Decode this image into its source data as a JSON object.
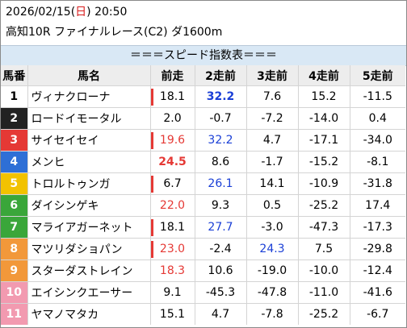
{
  "header": {
    "date": "2026/02/15",
    "dow": "日",
    "time": "20:50",
    "race": "高知10R ファイナルレース(C2) ダ1600m"
  },
  "panel_title": "＝＝＝スピード指数表＝＝＝",
  "columns": [
    "馬番",
    "馬名",
    "前走",
    "2走前",
    "3走前",
    "4走前",
    "5走前"
  ],
  "colors": {
    "red": "#e53935",
    "blue": "#1a3fd6",
    "header_bg": "#ededed",
    "title_bg": "#d9e8f5"
  },
  "rows": [
    {
      "num": "1",
      "num_bg": "#ffffff",
      "num_fg": "#000000",
      "name": "ヴィナクローナ",
      "mark": true,
      "vals": [
        {
          "t": "18.1",
          "c": ""
        },
        {
          "t": "32.2",
          "c": "blue bold"
        },
        {
          "t": "7.6",
          "c": ""
        },
        {
          "t": "15.2",
          "c": ""
        },
        {
          "t": "-11.5",
          "c": ""
        }
      ]
    },
    {
      "num": "2",
      "num_bg": "#222222",
      "num_fg": "#ffffff",
      "name": "ロードイモータル",
      "mark": false,
      "vals": [
        {
          "t": "2.0",
          "c": ""
        },
        {
          "t": "-0.7",
          "c": ""
        },
        {
          "t": "-7.2",
          "c": ""
        },
        {
          "t": "-14.0",
          "c": ""
        },
        {
          "t": "0.4",
          "c": ""
        }
      ]
    },
    {
      "num": "3",
      "num_bg": "#e53935",
      "num_fg": "#ffffff",
      "name": "サイセイセイ",
      "mark": true,
      "vals": [
        {
          "t": "19.6",
          "c": "red"
        },
        {
          "t": "32.2",
          "c": "blue"
        },
        {
          "t": "4.7",
          "c": ""
        },
        {
          "t": "-17.1",
          "c": ""
        },
        {
          "t": "-34.0",
          "c": ""
        }
      ]
    },
    {
      "num": "4",
      "num_bg": "#2e6fd6",
      "num_fg": "#ffffff",
      "name": "メンヒ",
      "mark": false,
      "vals": [
        {
          "t": "24.5",
          "c": "red bold"
        },
        {
          "t": "8.6",
          "c": ""
        },
        {
          "t": "-1.7",
          "c": ""
        },
        {
          "t": "-15.2",
          "c": ""
        },
        {
          "t": "-8.1",
          "c": ""
        }
      ]
    },
    {
      "num": "5",
      "num_bg": "#f2c200",
      "num_fg": "#ffffff",
      "name": "トロルトゥンガ",
      "mark": true,
      "vals": [
        {
          "t": "6.7",
          "c": ""
        },
        {
          "t": "26.1",
          "c": "blue"
        },
        {
          "t": "14.1",
          "c": ""
        },
        {
          "t": "-10.9",
          "c": ""
        },
        {
          "t": "-31.8",
          "c": ""
        }
      ]
    },
    {
      "num": "6",
      "num_bg": "#3aa63a",
      "num_fg": "#ffffff",
      "name": "ダイシンゲキ",
      "mark": false,
      "vals": [
        {
          "t": "22.0",
          "c": "red"
        },
        {
          "t": "9.3",
          "c": ""
        },
        {
          "t": "0.5",
          "c": ""
        },
        {
          "t": "-25.2",
          "c": ""
        },
        {
          "t": "17.4",
          "c": ""
        }
      ]
    },
    {
      "num": "7",
      "num_bg": "#3aa63a",
      "num_fg": "#ffffff",
      "name": "マライアガーネット",
      "mark": true,
      "vals": [
        {
          "t": "18.1",
          "c": ""
        },
        {
          "t": "27.7",
          "c": "blue"
        },
        {
          "t": "-3.0",
          "c": ""
        },
        {
          "t": "-47.3",
          "c": ""
        },
        {
          "t": "-17.3",
          "c": ""
        }
      ]
    },
    {
      "num": "8",
      "num_bg": "#f2983a",
      "num_fg": "#ffffff",
      "name": "マツリダショパン",
      "mark": true,
      "vals": [
        {
          "t": "23.0",
          "c": "red"
        },
        {
          "t": "-2.4",
          "c": ""
        },
        {
          "t": "24.3",
          "c": "blue"
        },
        {
          "t": "7.5",
          "c": ""
        },
        {
          "t": "-29.8",
          "c": ""
        }
      ]
    },
    {
      "num": "9",
      "num_bg": "#f2983a",
      "num_fg": "#ffffff",
      "name": "スターダストレイン",
      "mark": false,
      "vals": [
        {
          "t": "18.3",
          "c": "red"
        },
        {
          "t": "10.6",
          "c": ""
        },
        {
          "t": "-19.0",
          "c": ""
        },
        {
          "t": "-10.0",
          "c": ""
        },
        {
          "t": "-12.4",
          "c": ""
        }
      ]
    },
    {
      "num": "10",
      "num_bg": "#f29ab0",
      "num_fg": "#ffffff",
      "name": "エイシンクエーサー",
      "mark": false,
      "vals": [
        {
          "t": "9.1",
          "c": ""
        },
        {
          "t": "-45.3",
          "c": ""
        },
        {
          "t": "-47.8",
          "c": ""
        },
        {
          "t": "-11.0",
          "c": ""
        },
        {
          "t": "-41.6",
          "c": ""
        }
      ]
    },
    {
      "num": "11",
      "num_bg": "#f29ab0",
      "num_fg": "#ffffff",
      "name": "ヤマノマタカ",
      "mark": false,
      "vals": [
        {
          "t": "15.1",
          "c": ""
        },
        {
          "t": "4.7",
          "c": ""
        },
        {
          "t": "-7.8",
          "c": ""
        },
        {
          "t": "-25.2",
          "c": ""
        },
        {
          "t": "-6.7",
          "c": ""
        }
      ]
    }
  ]
}
